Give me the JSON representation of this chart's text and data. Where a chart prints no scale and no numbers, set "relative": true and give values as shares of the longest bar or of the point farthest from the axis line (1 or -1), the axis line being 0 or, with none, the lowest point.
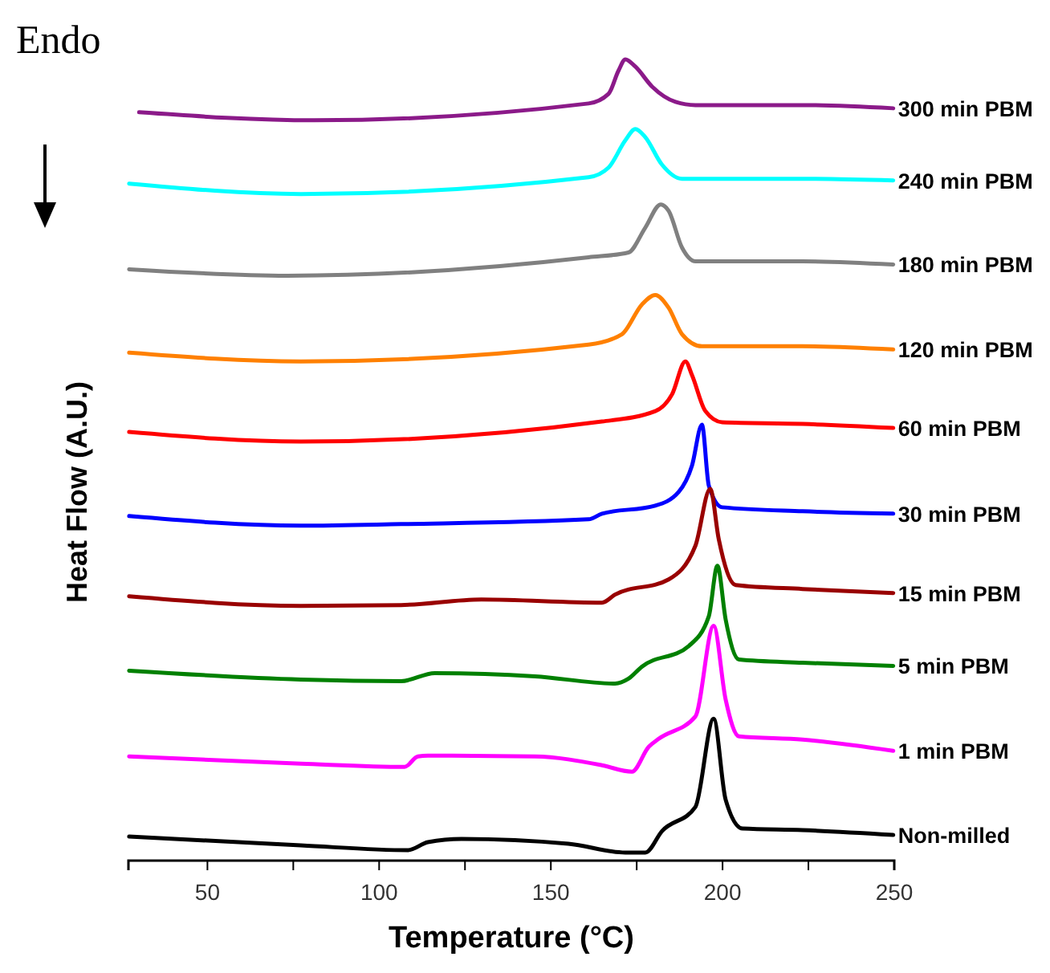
{
  "chart_data": {
    "type": "line",
    "relative": true,
    "xlabel": "Temperature (°C)",
    "ylabel": "Heat Flow (A.U.)",
    "annotations": [
      "Endo"
    ],
    "xlim": [
      27,
      250
    ],
    "xticks": [
      50,
      {
        "value": 75,
        "label": null
      },
      100,
      {
        "value": 125,
        "label": null
      },
      150,
      {
        "value": 175,
        "label": null
      },
      200,
      {
        "value": 225,
        "label": null
      },
      250
    ],
    "grid": false,
    "legend": false,
    "marker": "none",
    "line_style": "solid",
    "series": [
      {
        "name": "300 min PBM",
        "color": "#8b1a89",
        "x": [
          30.1,
          81.1,
          161,
          166.8,
          169.7,
          171.7,
          174.6,
          179.5,
          186.3,
          192.1,
          223.3,
          249.7
        ],
        "values": [
          0.934,
          0.924,
          0.945,
          0.957,
          0.986,
          1.0,
          0.991,
          0.966,
          0.947,
          0.943,
          0.943,
          0.939
        ]
      },
      {
        "name": "240 min PBM",
        "color": "#00ffff",
        "x": [
          27.2,
          77.2,
          161,
          166.8,
          171.7,
          174.6,
          177.5,
          182.3,
          188.2,
          223.3,
          249.7
        ],
        "values": [
          0.845,
          0.832,
          0.853,
          0.865,
          0.899,
          0.913,
          0.903,
          0.869,
          0.851,
          0.851,
          0.849
        ]
      },
      {
        "name": "180 min PBM",
        "color": "#808080",
        "x": [
          27.2,
          73.3,
          161,
          172.6,
          177.5,
          182,
          184.3,
          188.2,
          192.1,
          223.3,
          249.7
        ],
        "values": [
          0.738,
          0.73,
          0.753,
          0.759,
          0.79,
          0.819,
          0.811,
          0.765,
          0.748,
          0.748,
          0.744
        ]
      },
      {
        "name": "120 min PBM",
        "color": "#ff8000",
        "x": [
          27.2,
          77.2,
          161,
          170.7,
          176.5,
          180.4,
          184.3,
          188.2,
          194,
          223.3,
          249.7
        ],
        "values": [
          0.634,
          0.623,
          0.644,
          0.657,
          0.694,
          0.706,
          0.69,
          0.657,
          0.642,
          0.642,
          0.638
        ]
      },
      {
        "name": "60 min PBM",
        "color": "#ff0000",
        "x": [
          27.2,
          77.2,
          164.9,
          180.4,
          185.3,
          189.2,
          191.1,
          195,
          199.9,
          223.3,
          249.7
        ],
        "values": [
          0.535,
          0.523,
          0.548,
          0.561,
          0.582,
          0.623,
          0.606,
          0.561,
          0.547,
          0.545,
          0.54
        ]
      },
      {
        "name": "30 min PBM",
        "color": "#0000ff",
        "x": [
          27.2,
          77.2,
          106.4,
          161,
          164.9,
          180.4,
          187.2,
          191.1,
          194,
          196,
          199.9,
          223.3,
          249.7
        ],
        "values": [
          0.43,
          0.418,
          0.42,
          0.426,
          0.433,
          0.443,
          0.46,
          0.493,
          0.544,
          0.468,
          0.441,
          0.436,
          0.433
        ]
      },
      {
        "name": "15 min PBM",
        "color": "#990000",
        "x": [
          27.2,
          77.2,
          106.4,
          129.8,
          164.9,
          168.7,
          184.3,
          192.1,
          196.4,
          198.9,
          203.8,
          223.3,
          249.7
        ],
        "values": [
          0.33,
          0.318,
          0.319,
          0.326,
          0.322,
          0.332,
          0.351,
          0.393,
          0.464,
          0.401,
          0.344,
          0.339,
          0.334
        ]
      },
      {
        "name": "5 min PBM",
        "color": "#008000",
        "x": [
          27.2,
          77.2,
          106.4,
          116.2,
          145.4,
          168.7,
          172.6,
          176.5,
          190.2,
          196,
          198.5,
          200.9,
          204.8,
          223.3,
          249.7
        ],
        "values": [
          0.237,
          0.226,
          0.224,
          0.234,
          0.23,
          0.221,
          0.227,
          0.242,
          0.268,
          0.305,
          0.368,
          0.301,
          0.251,
          0.247,
          0.243
        ]
      },
      {
        "name": "1 min PBM",
        "color": "#ff00ff",
        "x": [
          27.2,
          77.2,
          107.4,
          111.3,
          114.2,
          145.4,
          164.9,
          173.6,
          178.5,
          181.4,
          192.1,
          197.4,
          200.9,
          204.8,
          223.3,
          249.7
        ],
        "values": [
          0.13,
          0.121,
          0.117,
          0.13,
          0.131,
          0.13,
          0.119,
          0.111,
          0.142,
          0.152,
          0.18,
          0.293,
          0.201,
          0.155,
          0.151,
          0.137
        ]
      },
      {
        "name": "Non-milled",
        "color": "#000000",
        "x": [
          27.2,
          77.2,
          108.4,
          114.2,
          124,
          155.1,
          171.7,
          177.5,
          182.4,
          192.1,
          197.4,
          200.9,
          205.8,
          223.3,
          249.7
        ],
        "values": [
          0.03,
          0.019,
          0.013,
          0.023,
          0.027,
          0.021,
          0.01,
          0.01,
          0.037,
          0.067,
          0.177,
          0.076,
          0.04,
          0.038,
          0.032
        ]
      }
    ]
  }
}
